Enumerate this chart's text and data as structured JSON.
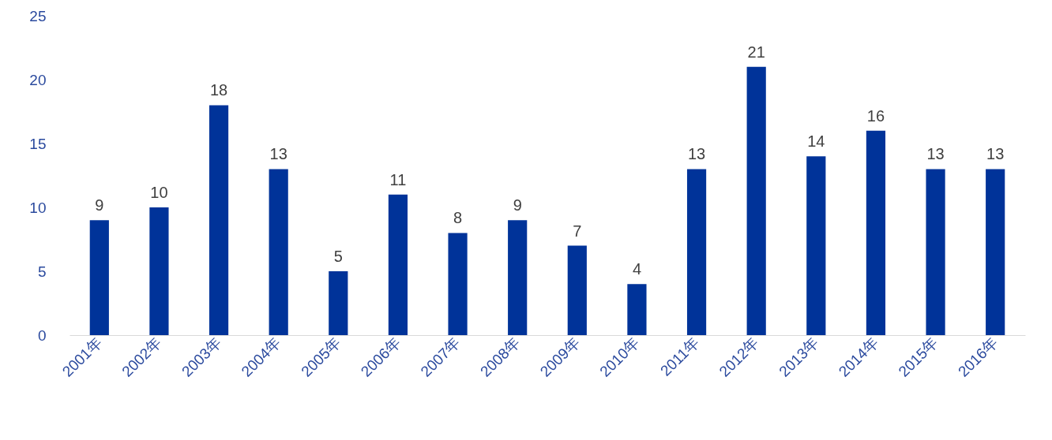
{
  "chart_data": {
    "type": "bar",
    "categories": [
      "2001年",
      "2002年",
      "2003年",
      "2004年",
      "2005年",
      "2006年",
      "2007年",
      "2008年",
      "2009年",
      "2010年",
      "2011年",
      "2012年",
      "2013年",
      "2014年",
      "2015年",
      "2016年"
    ],
    "values": [
      9,
      10,
      18,
      13,
      5,
      11,
      8,
      9,
      7,
      4,
      13,
      21,
      14,
      16,
      13,
      13
    ],
    "color": "#003399",
    "ylim": [
      0,
      25
    ],
    "yticks": [
      0,
      5,
      10,
      15,
      20,
      25
    ],
    "grid": false,
    "data_labels": true
  }
}
